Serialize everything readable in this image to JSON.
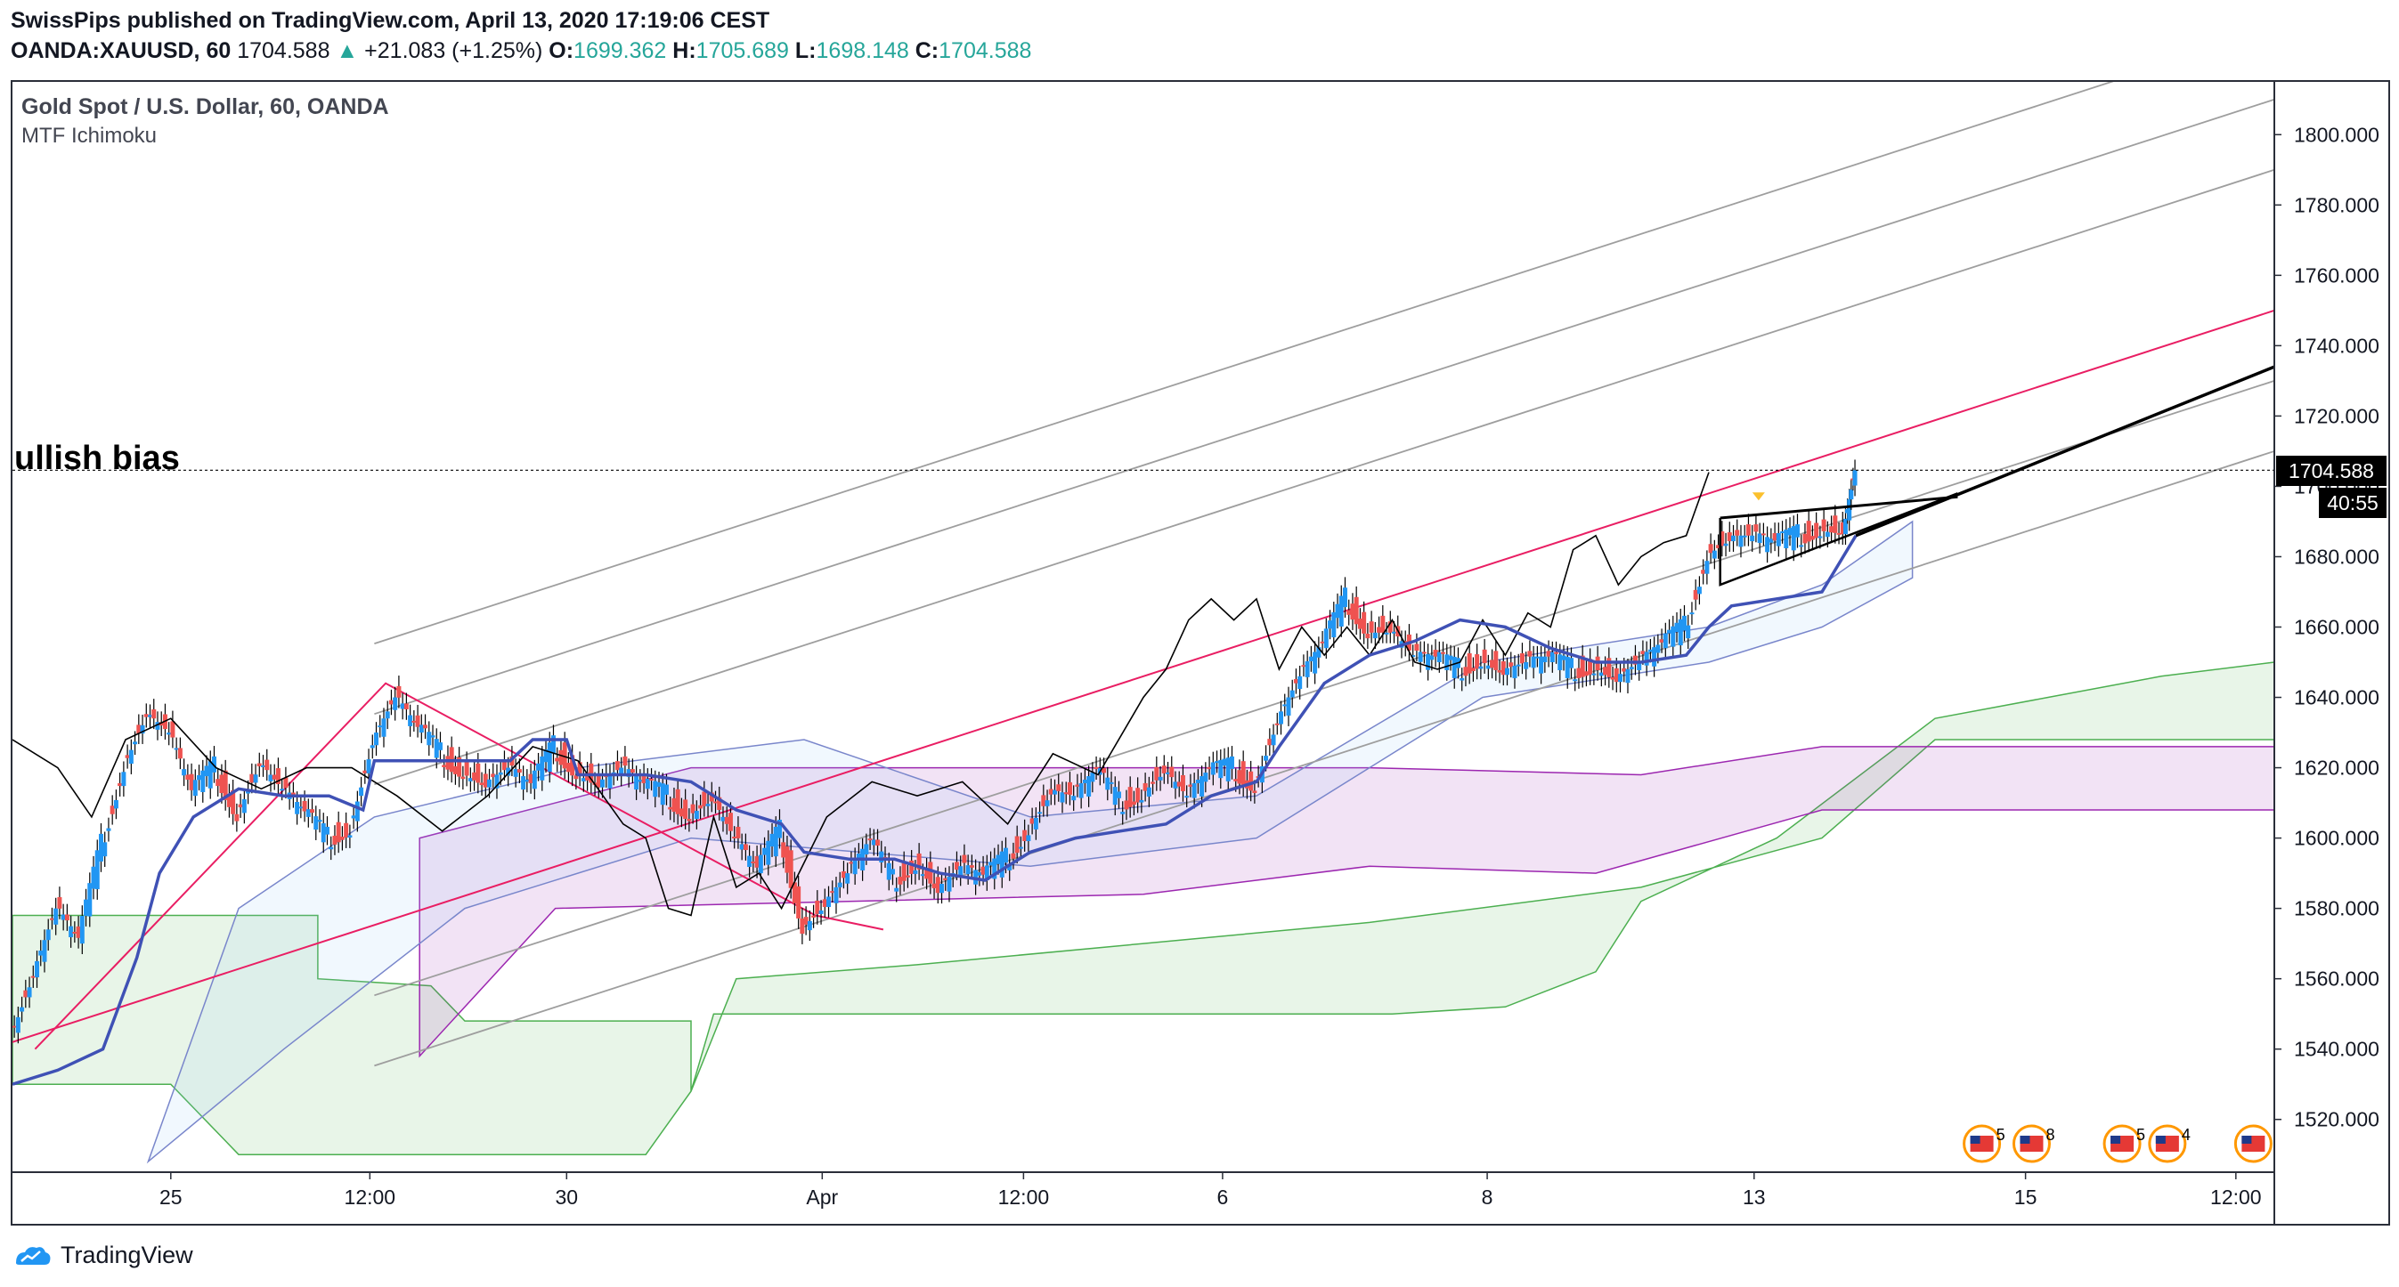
{
  "header": {
    "publisher_line": "SwissPips published on TradingView.com, April 13, 2020 17:19:06 CEST",
    "symbol": "OANDA:XAUUSD, 60",
    "last": "1704.588",
    "change": "+21.083 (+1.25%)",
    "o_label": "O:",
    "o_value": "1699.362",
    "h_label": "H:",
    "h_value": "1705.689",
    "l_label": "L:",
    "l_value": "1698.148",
    "c_label": "C:",
    "c_value": "1704.588"
  },
  "legend": {
    "title": "Gold Spot / U.S. Dollar, 60, OANDA",
    "indicator": "MTF Ichimoku"
  },
  "annotation": {
    "text": "ullish bias"
  },
  "price_tag": {
    "value": "1704.588",
    "countdown": "40:55"
  },
  "footer": {
    "brand": "TradingView"
  },
  "colors": {
    "up": "#2196f3",
    "down": "#ef5350",
    "channel_mid": "#e91e63",
    "channel": "#9e9e9e",
    "kijun": "#3f51b5",
    "chikou": "#000000",
    "cloud_green": "#4caf50",
    "cloud_purple": "#9c27b0",
    "cloud_blue": "#90caf9"
  },
  "events": [
    {
      "icon": "us-flag-icon",
      "count": "5"
    },
    {
      "icon": "us-flag-icon",
      "count": "8"
    },
    {
      "icon": "us-flag-icon",
      "count": "5"
    },
    {
      "icon": "us-flag-icon",
      "count": "4"
    },
    {
      "icon": "us-flag-icon",
      "count": ""
    }
  ],
  "chart_data": {
    "type": "candlestick",
    "title": "Gold Spot / U.S. Dollar, 60, OANDA",
    "y_ticks": [
      1800,
      1780,
      1760,
      1740,
      1720,
      1700,
      1680,
      1660,
      1640,
      1620,
      1600,
      1580,
      1560,
      1540,
      1520
    ],
    "y_tick_labels": [
      "1800.000",
      "1780.000",
      "1760.000",
      "1740.000",
      "1720.000",
      "1700.000",
      "1680.000",
      "1660.000",
      "1640.000",
      "1620.000",
      "1600.000",
      "1580.000",
      "1560.000",
      "1540.000",
      "1520.000"
    ],
    "ylim": [
      1505,
      1815
    ],
    "x_tick_labels": [
      "25",
      "12:00",
      "30",
      "Apr",
      "12:00",
      "6",
      "8",
      "13",
      "15",
      "12:00"
    ],
    "x_ticks": [
      0.07,
      0.158,
      0.245,
      0.358,
      0.447,
      0.535,
      0.652,
      0.77,
      0.89,
      0.983
    ],
    "close_path": [
      [
        0.0,
        1545
      ],
      [
        0.01,
        1562
      ],
      [
        0.02,
        1580
      ],
      [
        0.03,
        1570
      ],
      [
        0.04,
        1598
      ],
      [
        0.05,
        1622
      ],
      [
        0.06,
        1636
      ],
      [
        0.07,
        1630
      ],
      [
        0.08,
        1612
      ],
      [
        0.09,
        1620
      ],
      [
        0.1,
        1608
      ],
      [
        0.11,
        1622
      ],
      [
        0.12,
        1614
      ],
      [
        0.13,
        1606
      ],
      [
        0.14,
        1600
      ],
      [
        0.15,
        1604
      ],
      [
        0.16,
        1628
      ],
      [
        0.17,
        1640
      ],
      [
        0.18,
        1630
      ],
      [
        0.19,
        1624
      ],
      [
        0.2,
        1620
      ],
      [
        0.21,
        1616
      ],
      [
        0.22,
        1620
      ],
      [
        0.23,
        1614
      ],
      [
        0.24,
        1626
      ],
      [
        0.25,
        1620
      ],
      [
        0.26,
        1616
      ],
      [
        0.27,
        1620
      ],
      [
        0.28,
        1614
      ],
      [
        0.29,
        1612
      ],
      [
        0.3,
        1608
      ],
      [
        0.31,
        1612
      ],
      [
        0.32,
        1600
      ],
      [
        0.33,
        1590
      ],
      [
        0.34,
        1602
      ],
      [
        0.35,
        1576
      ],
      [
        0.36,
        1582
      ],
      [
        0.37,
        1590
      ],
      [
        0.38,
        1598
      ],
      [
        0.39,
        1588
      ],
      [
        0.4,
        1594
      ],
      [
        0.41,
        1586
      ],
      [
        0.42,
        1592
      ],
      [
        0.43,
        1588
      ],
      [
        0.44,
        1594
      ],
      [
        0.45,
        1604
      ],
      [
        0.46,
        1614
      ],
      [
        0.47,
        1612
      ],
      [
        0.48,
        1618
      ],
      [
        0.49,
        1610
      ],
      [
        0.5,
        1614
      ],
      [
        0.51,
        1620
      ],
      [
        0.52,
        1612
      ],
      [
        0.53,
        1618
      ],
      [
        0.54,
        1620
      ],
      [
        0.55,
        1616
      ],
      [
        0.56,
        1634
      ],
      [
        0.57,
        1646
      ],
      [
        0.58,
        1654
      ],
      [
        0.59,
        1668
      ],
      [
        0.6,
        1660
      ],
      [
        0.61,
        1660
      ],
      [
        0.62,
        1652
      ],
      [
        0.63,
        1650
      ],
      [
        0.64,
        1648
      ],
      [
        0.65,
        1652
      ],
      [
        0.66,
        1648
      ],
      [
        0.67,
        1650
      ],
      [
        0.68,
        1650
      ],
      [
        0.69,
        1648
      ],
      [
        0.7,
        1650
      ],
      [
        0.71,
        1646
      ],
      [
        0.72,
        1650
      ],
      [
        0.73,
        1654
      ],
      [
        0.74,
        1660
      ],
      [
        0.75,
        1682
      ],
      [
        0.76,
        1686
      ],
      [
        0.77,
        1686
      ],
      [
        0.78,
        1683
      ],
      [
        0.79,
        1686
      ],
      [
        0.8,
        1689
      ],
      [
        0.81,
        1688
      ],
      [
        0.815,
        1704.588
      ]
    ],
    "chikou_path": [
      [
        0.0,
        1628
      ],
      [
        0.02,
        1620
      ],
      [
        0.035,
        1606
      ],
      [
        0.05,
        1628
      ],
      [
        0.07,
        1634
      ],
      [
        0.09,
        1620
      ],
      [
        0.11,
        1614
      ],
      [
        0.13,
        1620
      ],
      [
        0.15,
        1620
      ],
      [
        0.17,
        1612
      ],
      [
        0.19,
        1602
      ],
      [
        0.21,
        1612
      ],
      [
        0.23,
        1626
      ],
      [
        0.25,
        1622
      ],
      [
        0.27,
        1604
      ],
      [
        0.28,
        1600
      ],
      [
        0.29,
        1580
      ],
      [
        0.3,
        1578
      ],
      [
        0.31,
        1606
      ],
      [
        0.32,
        1586
      ],
      [
        0.33,
        1590
      ],
      [
        0.34,
        1580
      ],
      [
        0.36,
        1606
      ],
      [
        0.38,
        1616
      ],
      [
        0.4,
        1612
      ],
      [
        0.42,
        1616
      ],
      [
        0.44,
        1604
      ],
      [
        0.46,
        1624
      ],
      [
        0.48,
        1618
      ],
      [
        0.5,
        1640
      ],
      [
        0.51,
        1648
      ],
      [
        0.52,
        1662
      ],
      [
        0.53,
        1668
      ],
      [
        0.54,
        1662
      ],
      [
        0.55,
        1668
      ],
      [
        0.56,
        1648
      ],
      [
        0.57,
        1660
      ],
      [
        0.58,
        1652
      ],
      [
        0.59,
        1660
      ],
      [
        0.6,
        1652
      ],
      [
        0.61,
        1662
      ],
      [
        0.62,
        1650
      ],
      [
        0.63,
        1648
      ],
      [
        0.64,
        1650
      ],
      [
        0.65,
        1662
      ],
      [
        0.66,
        1652
      ],
      [
        0.67,
        1664
      ],
      [
        0.68,
        1660
      ],
      [
        0.69,
        1682
      ],
      [
        0.7,
        1686
      ],
      [
        0.71,
        1672
      ],
      [
        0.72,
        1680
      ],
      [
        0.73,
        1684
      ],
      [
        0.74,
        1686
      ],
      [
        0.75,
        1704
      ]
    ],
    "kijun_path": [
      [
        0.0,
        1530
      ],
      [
        0.02,
        1534
      ],
      [
        0.04,
        1540
      ],
      [
        0.055,
        1566
      ],
      [
        0.065,
        1590
      ],
      [
        0.08,
        1606
      ],
      [
        0.1,
        1614
      ],
      [
        0.12,
        1612
      ],
      [
        0.14,
        1612
      ],
      [
        0.155,
        1608
      ],
      [
        0.16,
        1622
      ],
      [
        0.18,
        1622
      ],
      [
        0.2,
        1622
      ],
      [
        0.22,
        1622
      ],
      [
        0.23,
        1628
      ],
      [
        0.245,
        1628
      ],
      [
        0.25,
        1618
      ],
      [
        0.28,
        1618
      ],
      [
        0.3,
        1616
      ],
      [
        0.32,
        1608
      ],
      [
        0.34,
        1604
      ],
      [
        0.35,
        1596
      ],
      [
        0.37,
        1594
      ],
      [
        0.39,
        1594
      ],
      [
        0.41,
        1590
      ],
      [
        0.43,
        1588
      ],
      [
        0.45,
        1596
      ],
      [
        0.47,
        1600
      ],
      [
        0.49,
        1602
      ],
      [
        0.51,
        1604
      ],
      [
        0.53,
        1612
      ],
      [
        0.55,
        1616
      ],
      [
        0.56,
        1626
      ],
      [
        0.58,
        1644
      ],
      [
        0.6,
        1652
      ],
      [
        0.62,
        1656
      ],
      [
        0.64,
        1662
      ],
      [
        0.66,
        1660
      ],
      [
        0.68,
        1654
      ],
      [
        0.7,
        1650
      ],
      [
        0.72,
        1650
      ],
      [
        0.74,
        1652
      ],
      [
        0.75,
        1660
      ],
      [
        0.76,
        1666
      ],
      [
        0.78,
        1668
      ],
      [
        0.8,
        1670
      ],
      [
        0.815,
        1686
      ]
    ],
    "channel": {
      "start_x": 0.0,
      "end_x": 1.0,
      "mid_start": 1542,
      "mid_end": 1750,
      "offsets": [
        -40,
        -20,
        40,
        60,
        80
      ]
    },
    "triangle": {
      "upper": [
        [
          0.755,
          1691
        ],
        [
          0.86,
          1697
        ]
      ],
      "lower": [
        [
          0.755,
          1672
        ],
        [
          0.86,
          1698
        ]
      ],
      "breakout": [
        [
          0.815,
          1686
        ],
        [
          1.0,
          1734
        ]
      ]
    }
  }
}
